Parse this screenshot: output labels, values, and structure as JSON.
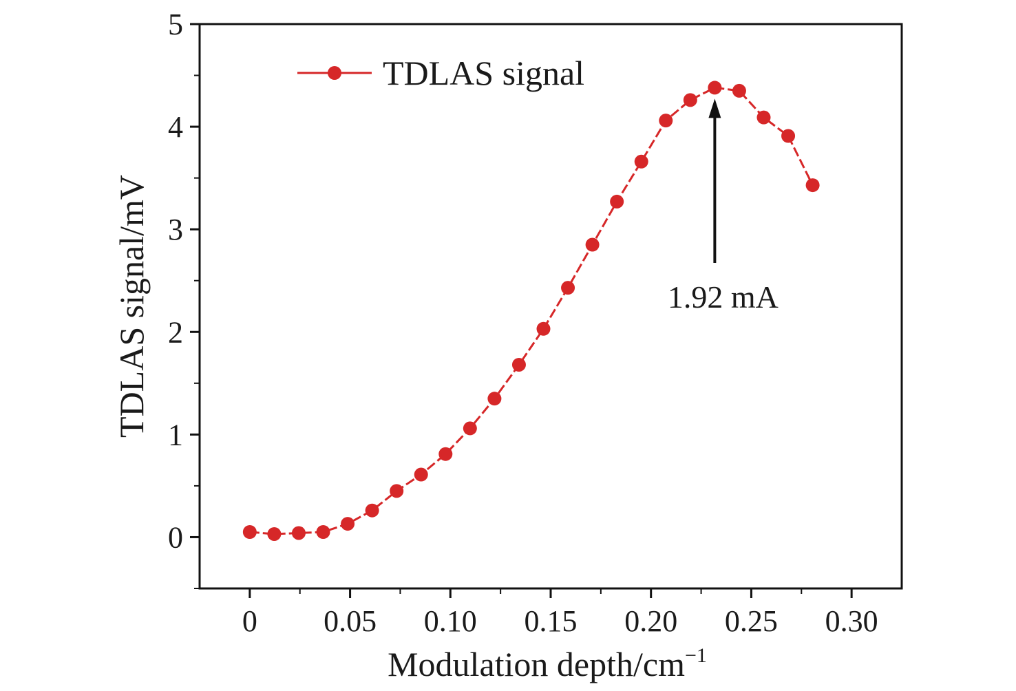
{
  "chart_data": {
    "type": "line",
    "title": "",
    "xlabel": "Modulation depth/cm",
    "xlabel_superscript": "−1",
    "ylabel": "TDLAS signal/mV",
    "xlim": [
      -0.025,
      0.325
    ],
    "ylim": [
      -0.5,
      5
    ],
    "xticks": [
      0,
      0.05,
      0.1,
      0.15,
      0.2,
      0.25,
      0.3
    ],
    "xtick_labels": [
      "0",
      "0.05",
      "0.10",
      "0.15",
      "0.20",
      "0.25",
      "0.30"
    ],
    "yticks": [
      0,
      1,
      2,
      3,
      4,
      5
    ],
    "ytick_labels": [
      "0",
      "1",
      "2",
      "3",
      "4",
      "5"
    ],
    "grid": false,
    "legend_position": "top-left",
    "series": [
      {
        "name": "TDLAS signal",
        "color": "#d62728",
        "x": [
          0,
          0.0122,
          0.0244,
          0.0366,
          0.0488,
          0.061,
          0.0732,
          0.0854,
          0.0976,
          0.1098,
          0.122,
          0.1342,
          0.1464,
          0.1586,
          0.1708,
          0.183,
          0.1952,
          0.2074,
          0.2196,
          0.2318,
          0.244,
          0.2562,
          0.2684,
          0.2806
        ],
        "values": [
          0.05,
          0.03,
          0.04,
          0.05,
          0.13,
          0.26,
          0.45,
          0.61,
          0.81,
          1.06,
          1.35,
          1.68,
          2.03,
          2.43,
          2.85,
          3.27,
          3.66,
          4.06,
          4.26,
          4.38,
          4.35,
          4.09,
          3.91,
          3.43
        ]
      }
    ],
    "annotations": [
      {
        "text": "1.92 mA",
        "x": 0.2318,
        "y": 4.38
      }
    ]
  }
}
